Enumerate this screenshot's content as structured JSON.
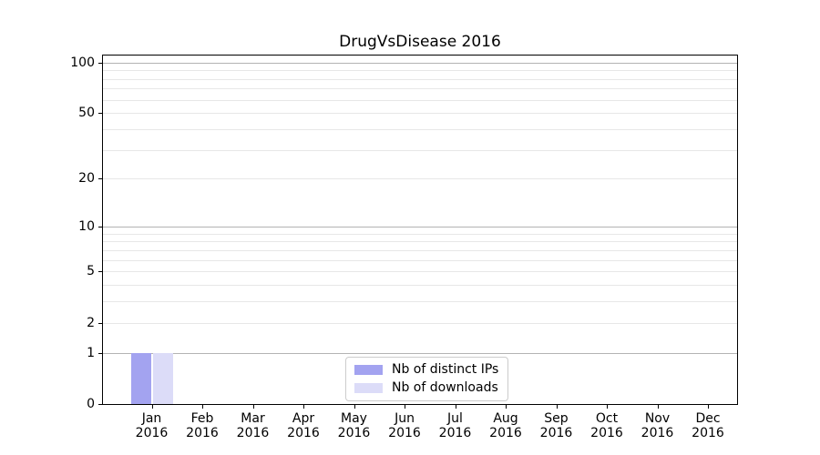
{
  "chart_data": {
    "type": "bar",
    "title": "DrugVsDisease 2016",
    "categories": [
      {
        "label": "Jan",
        "year": "2016"
      },
      {
        "label": "Feb",
        "year": "2016"
      },
      {
        "label": "Mar",
        "year": "2016"
      },
      {
        "label": "Apr",
        "year": "2016"
      },
      {
        "label": "May",
        "year": "2016"
      },
      {
        "label": "Jun",
        "year": "2016"
      },
      {
        "label": "Jul",
        "year": "2016"
      },
      {
        "label": "Aug",
        "year": "2016"
      },
      {
        "label": "Sep",
        "year": "2016"
      },
      {
        "label": "Oct",
        "year": "2016"
      },
      {
        "label": "Nov",
        "year": "2016"
      },
      {
        "label": "Dec",
        "year": "2016"
      }
    ],
    "series": [
      {
        "name": "Nb of distinct IPs",
        "color": "#a3a3f0",
        "values": [
          1,
          0,
          0,
          0,
          0,
          0,
          0,
          0,
          0,
          0,
          0,
          0
        ]
      },
      {
        "name": "Nb of downloads",
        "color": "#dcdcf8",
        "values": [
          1,
          0,
          0,
          0,
          0,
          0,
          0,
          0,
          0,
          0,
          0,
          0
        ]
      }
    ],
    "xlabel": "",
    "ylabel": "",
    "yscale": "log1p",
    "ylim": [
      0,
      110
    ],
    "y_ticks_labeled": [
      0,
      1,
      2,
      5,
      10,
      20,
      50,
      100
    ],
    "y_gridlines_major": [
      1,
      10,
      100
    ],
    "y_gridlines_minor": [
      2,
      3,
      4,
      5,
      6,
      7,
      8,
      9,
      20,
      30,
      40,
      50,
      60,
      70,
      80,
      90
    ],
    "grid": true,
    "legend_position": "lower center",
    "colors": {
      "grid_major": "#b3b3b3",
      "grid_minor": "#e7e7e7",
      "spine": "#000000",
      "legend_border": "#cccccc"
    }
  }
}
